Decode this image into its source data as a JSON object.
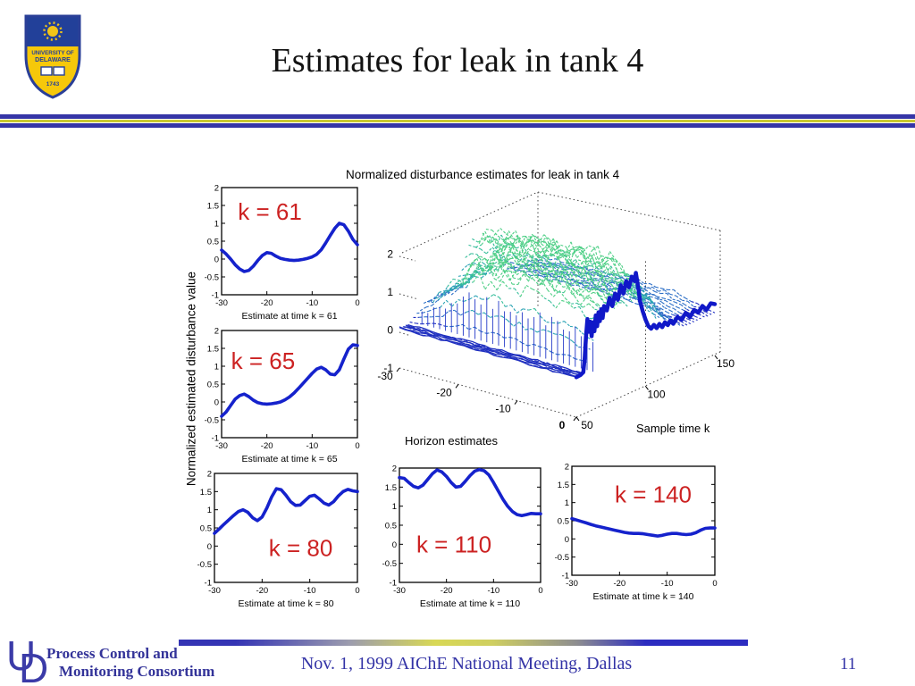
{
  "slide": {
    "title": "Estimates for leak in tank 4",
    "page_number": "11",
    "footer": {
      "monogram_u": "U",
      "monogram_d": "D",
      "org_line1": "Process Control and",
      "org_line2": "Monitoring Consortium",
      "center_text": "Nov. 1, 1999 AIChE National Meeting, Dallas"
    },
    "logo": {
      "institution": "University of Delaware",
      "banner_top": "UNIVERSITY OF",
      "banner_bottom": "DELAWARE",
      "year": "1743"
    },
    "colors": {
      "accent_blue": "#3535a6",
      "accent_yellow": "#c9c930",
      "annotation_red": "#cc2222",
      "data_line_blue": "#1522cc"
    }
  },
  "figure": {
    "title": "Normalized disturbance estimates for leak in tank 4",
    "ylabel": "Normalized estimated disturbance value"
  },
  "chart_data": [
    {
      "id": "p61",
      "type": "line",
      "annotation": "k = 61",
      "xlabel": "Estimate at time k = 61",
      "xlim": [
        -30,
        0
      ],
      "ylim": [
        -1,
        2
      ],
      "x_ticks": [
        -30,
        -20,
        -10,
        0
      ],
      "y_ticks": [
        2,
        1.5,
        1,
        0.5,
        0,
        -0.5,
        -1
      ],
      "x_start": -30,
      "x_step": 1,
      "values": [
        0.25,
        0.14,
        0.0,
        -0.16,
        -0.28,
        -0.35,
        -0.32,
        -0.2,
        -0.04,
        0.1,
        0.18,
        0.16,
        0.08,
        0.02,
        -0.01,
        -0.03,
        -0.04,
        -0.03,
        -0.01,
        0.02,
        0.06,
        0.13,
        0.26,
        0.45,
        0.66,
        0.86,
        1.0,
        0.96,
        0.78,
        0.55,
        0.4
      ]
    },
    {
      "id": "p65",
      "type": "line",
      "annotation": "k = 65",
      "xlabel": "Estimate at time k = 65",
      "xlim": [
        -30,
        0
      ],
      "ylim": [
        -1,
        2
      ],
      "x_ticks": [
        -30,
        -20,
        -10,
        0
      ],
      "y_ticks": [
        2,
        1.5,
        1,
        0.5,
        0,
        -0.5,
        -1
      ],
      "x_start": -30,
      "x_step": 1,
      "values": [
        -0.4,
        -0.28,
        -0.1,
        0.08,
        0.18,
        0.22,
        0.15,
        0.05,
        -0.02,
        -0.05,
        -0.06,
        -0.05,
        -0.03,
        0.0,
        0.06,
        0.14,
        0.25,
        0.38,
        0.52,
        0.66,
        0.8,
        0.92,
        0.97,
        0.9,
        0.78,
        0.76,
        0.9,
        1.2,
        1.48,
        1.6,
        1.58
      ]
    },
    {
      "id": "p80",
      "type": "line",
      "annotation": "k = 80",
      "xlabel": "Estimate at time k = 80",
      "xlim": [
        -30,
        0
      ],
      "ylim": [
        -1,
        2
      ],
      "x_ticks": [
        -30,
        -20,
        -10,
        0
      ],
      "y_ticks": [
        2,
        1.5,
        1,
        0.5,
        0,
        -0.5,
        -1
      ],
      "x_start": -30,
      "x_step": 1,
      "values": [
        0.35,
        0.47,
        0.6,
        0.72,
        0.84,
        0.95,
        1.0,
        0.93,
        0.78,
        0.7,
        0.8,
        1.05,
        1.35,
        1.58,
        1.55,
        1.4,
        1.22,
        1.12,
        1.13,
        1.25,
        1.37,
        1.4,
        1.3,
        1.18,
        1.13,
        1.22,
        1.38,
        1.5,
        1.56,
        1.52,
        1.5
      ]
    },
    {
      "id": "p110",
      "type": "line",
      "annotation": "k = 110",
      "xlabel": "Estimate at time k = 110",
      "xlim": [
        -30,
        0
      ],
      "ylim": [
        -1,
        2
      ],
      "x_ticks": [
        -30,
        -20,
        -10,
        0
      ],
      "y_ticks": [
        2,
        1.5,
        1,
        0.5,
        0,
        -0.5,
        -1
      ],
      "x_start": -30,
      "x_step": 1,
      "values": [
        1.75,
        1.73,
        1.62,
        1.52,
        1.48,
        1.55,
        1.7,
        1.85,
        1.95,
        1.9,
        1.78,
        1.62,
        1.5,
        1.52,
        1.65,
        1.8,
        1.92,
        1.96,
        1.93,
        1.82,
        1.62,
        1.4,
        1.18,
        1.0,
        0.86,
        0.78,
        0.75,
        0.78,
        0.81,
        0.8,
        0.8
      ]
    },
    {
      "id": "p140",
      "type": "line",
      "annotation": "k = 140",
      "xlabel": "Estimate at time k = 140",
      "xlim": [
        -30,
        0
      ],
      "ylim": [
        -1,
        2
      ],
      "x_ticks": [
        -30,
        -20,
        -10,
        0
      ],
      "y_ticks": [
        2,
        1.5,
        1,
        0.5,
        0,
        -0.5,
        -1
      ],
      "x_start": -30,
      "x_step": 1,
      "values": [
        0.56,
        0.52,
        0.48,
        0.44,
        0.4,
        0.36,
        0.33,
        0.3,
        0.27,
        0.24,
        0.21,
        0.18,
        0.16,
        0.15,
        0.15,
        0.14,
        0.12,
        0.1,
        0.08,
        0.1,
        0.13,
        0.15,
        0.15,
        0.13,
        0.12,
        0.13,
        0.17,
        0.24,
        0.29,
        0.3,
        0.3
      ]
    },
    {
      "id": "surf3d",
      "type": "surface",
      "title": "Normalized disturbance estimates for leak in tank 4",
      "xlabel": "Horizon estimates",
      "ylabel": "Sample time k",
      "xlim": [
        -30,
        0
      ],
      "ylim": [
        50,
        150
      ],
      "zlim": [
        -1,
        2
      ],
      "x_ticks": [
        -30,
        -20,
        -10,
        0
      ],
      "y_ticks": [
        50,
        100,
        150
      ],
      "z_ticks": [
        2,
        1,
        0,
        -1
      ],
      "front_edge": {
        "k": [
          50,
          53,
          55,
          56,
          57,
          58,
          59,
          60,
          61,
          62,
          63,
          64,
          65,
          66,
          67,
          68,
          69,
          70,
          72,
          74,
          76,
          78,
          80,
          82,
          84,
          86,
          88,
          90,
          92,
          93,
          95,
          96,
          98,
          100,
          102,
          104,
          106,
          108,
          110,
          112,
          114,
          116,
          118,
          120,
          123,
          126,
          129,
          132,
          135,
          138,
          141,
          144,
          147,
          150
        ],
        "z": [
          0.05,
          0.06,
          0.1,
          0.45,
          1.0,
          1.45,
          1.1,
          1.35,
          0.95,
          1.3,
          1.05,
          1.45,
          1.15,
          1.5,
          1.25,
          1.55,
          1.3,
          1.6,
          1.45,
          1.75,
          1.5,
          1.8,
          1.6,
          1.95,
          1.7,
          2.0,
          1.8,
          2.05,
          1.9,
          2.1,
          1.6,
          1.3,
          1.0,
          0.75,
          0.55,
          0.45,
          0.52,
          0.4,
          0.48,
          0.36,
          0.46,
          0.35,
          0.44,
          0.32,
          0.45,
          0.33,
          0.46,
          0.3,
          0.44,
          0.32,
          0.45,
          0.3,
          0.42,
          0.35
        ]
      }
    }
  ]
}
